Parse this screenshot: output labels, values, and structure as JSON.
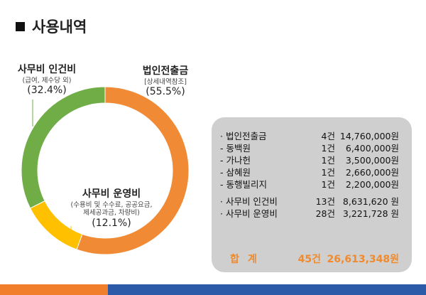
{
  "title": "사용내역",
  "chart_data": {
    "type": "pie",
    "donut": true,
    "slices": [
      {
        "name": "법인전출금",
        "sub": "[상세내역참조]",
        "percent": 55.5,
        "pct_label": "(55.5%)",
        "color": "#f08a34"
      },
      {
        "name": "사무비 운영비",
        "sub": "(수용비 및 수수료, 공공요금,\n제세공과금, 차량비)",
        "percent": 12.1,
        "pct_label": "(12.1%)",
        "color": "#ffc000"
      },
      {
        "name": "사무비 인건비",
        "sub": "(급여, 제수당 외)",
        "percent": 32.4,
        "pct_label": "(32.4%)",
        "color": "#70ad47"
      }
    ]
  },
  "table": {
    "rows": [
      {
        "item": "· 법인전출금",
        "count": "4건",
        "amount": "14,760,000원"
      },
      {
        "item": " - 동백원",
        "count": "1건",
        "amount": "6,400,000원"
      },
      {
        "item": " - 가나헌",
        "count": "1건",
        "amount": "3,500,000원"
      },
      {
        "item": " - 삼혜원",
        "count": "1건",
        "amount": "2,660,000원"
      },
      {
        "item": " - 동행빌리지",
        "count": "1건",
        "amount": "2,200,000원"
      },
      {
        "item": "· 사무비 인건비",
        "count": "13건",
        "amount": "8,631,620 원"
      },
      {
        "item": "· 사무비 운영비",
        "count": "28건",
        "amount": "3,221,728 원"
      }
    ],
    "total": {
      "label": "합계",
      "count": "45건",
      "amount": "26,613,348원"
    }
  },
  "colors": {
    "footer_left": "#f07e2a",
    "footer_right": "#2d5aa8",
    "total_text": "#f08a2c"
  }
}
